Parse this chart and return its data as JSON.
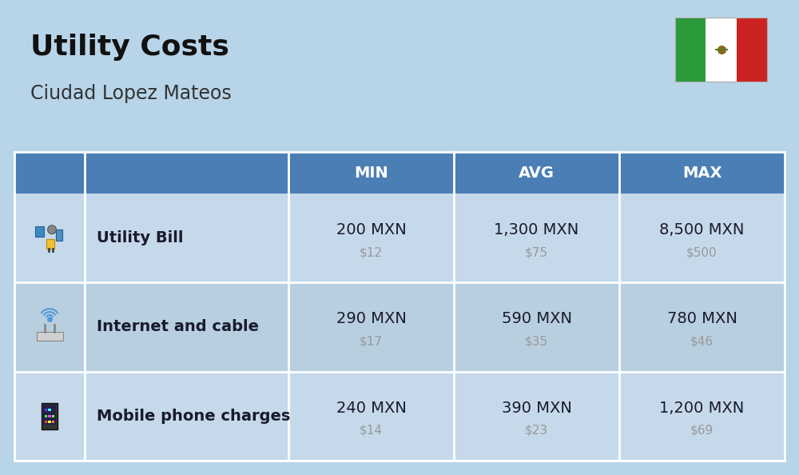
{
  "title": "Utility Costs",
  "subtitle": "Ciudad Lopez Mateos",
  "background_color": "#b8d4e8",
  "header_color": "#4a7eb5",
  "header_text_color": "#ffffff",
  "row_color_odd": "#c5d9ea",
  "row_color_even": "#b8cfe0",
  "sep_color": "#ffffff",
  "columns": [
    "MIN",
    "AVG",
    "MAX"
  ],
  "rows": [
    {
      "label": "Utility Bill",
      "min_mxn": "200 MXN",
      "min_usd": "$12",
      "avg_mxn": "1,300 MXN",
      "avg_usd": "$75",
      "max_mxn": "8,500 MXN",
      "max_usd": "$500"
    },
    {
      "label": "Internet and cable",
      "min_mxn": "290 MXN",
      "min_usd": "$17",
      "avg_mxn": "590 MXN",
      "avg_usd": "$35",
      "max_mxn": "780 MXN",
      "max_usd": "$46"
    },
    {
      "label": "Mobile phone charges",
      "min_mxn": "240 MXN",
      "min_usd": "$14",
      "avg_mxn": "390 MXN",
      "avg_usd": "$23",
      "max_mxn": "1,200 MXN",
      "max_usd": "$69"
    }
  ],
  "flag_green": "#2a9a3a",
  "flag_white": "#ffffff",
  "flag_red": "#cc2222",
  "title_fontsize": 26,
  "subtitle_fontsize": 17,
  "header_fontsize": 14,
  "label_fontsize": 14,
  "value_fontsize": 14,
  "usd_fontsize": 11,
  "value_color": "#1a1a2e",
  "usd_color": "#999999",
  "label_color": "#1a1a2e",
  "title_color": "#111111",
  "subtitle_color": "#333333"
}
